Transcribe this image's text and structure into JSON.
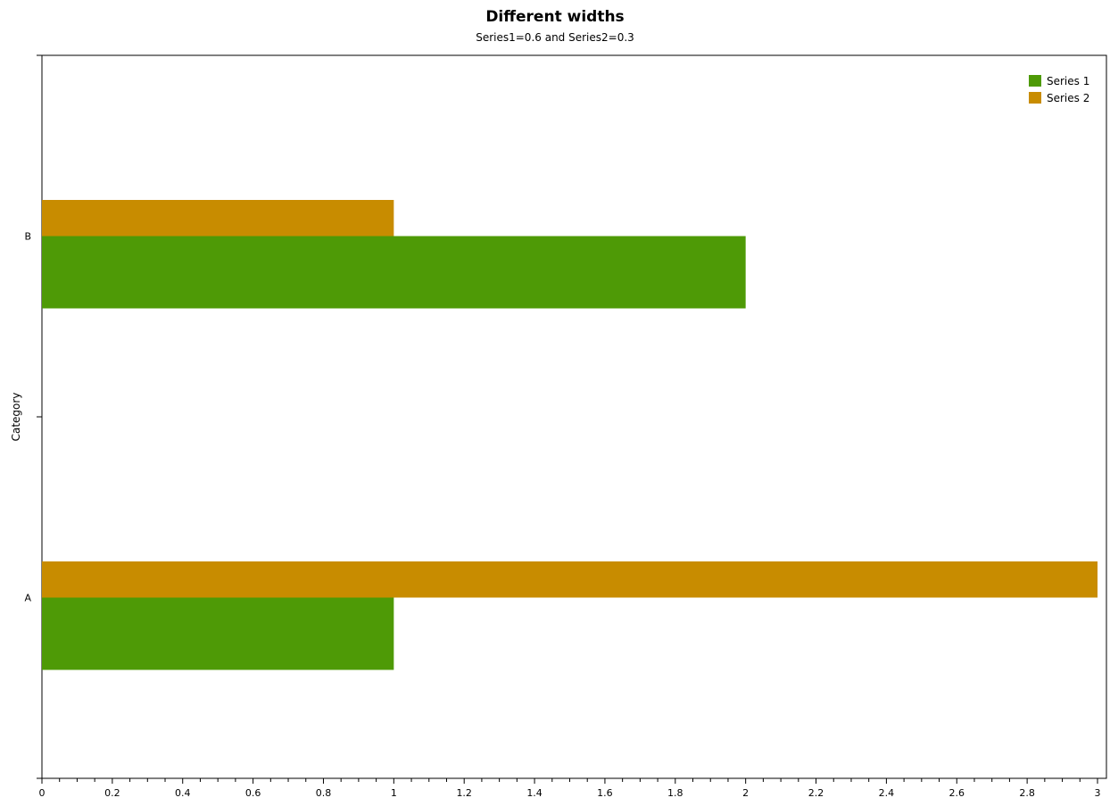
{
  "chart_data": {
    "type": "bar",
    "orientation": "horizontal",
    "title": "Different widths",
    "subtitle": "Series1=0.6 and Series2=0.3",
    "ylabel": "Category",
    "xlabel": "",
    "categories": [
      "A",
      "B"
    ],
    "series": [
      {
        "name": "Series 1",
        "values": [
          1,
          2
        ],
        "color": "#4e9a06",
        "bar_width": 0.6
      },
      {
        "name": "Series 2",
        "values": [
          3,
          1
        ],
        "color": "#c88c00",
        "bar_width": 0.3
      }
    ],
    "xlim": [
      0,
      3
    ],
    "x_major_ticks": [
      0,
      0.2,
      0.4,
      0.6,
      0.8,
      1,
      1.2,
      1.4,
      1.6,
      1.8,
      2,
      2.2,
      2.4,
      2.6,
      2.8,
      3
    ],
    "x_tick_labels": [
      "0",
      "0.2",
      "0.4",
      "0.6",
      "0.8",
      "1",
      "1.2",
      "1.4",
      "1.6",
      "1.8",
      "2",
      "2.2",
      "2.4",
      "2.6",
      "2.8",
      "3"
    ],
    "x_minor_step": 0.05,
    "grid": false,
    "legend": "top-right"
  }
}
